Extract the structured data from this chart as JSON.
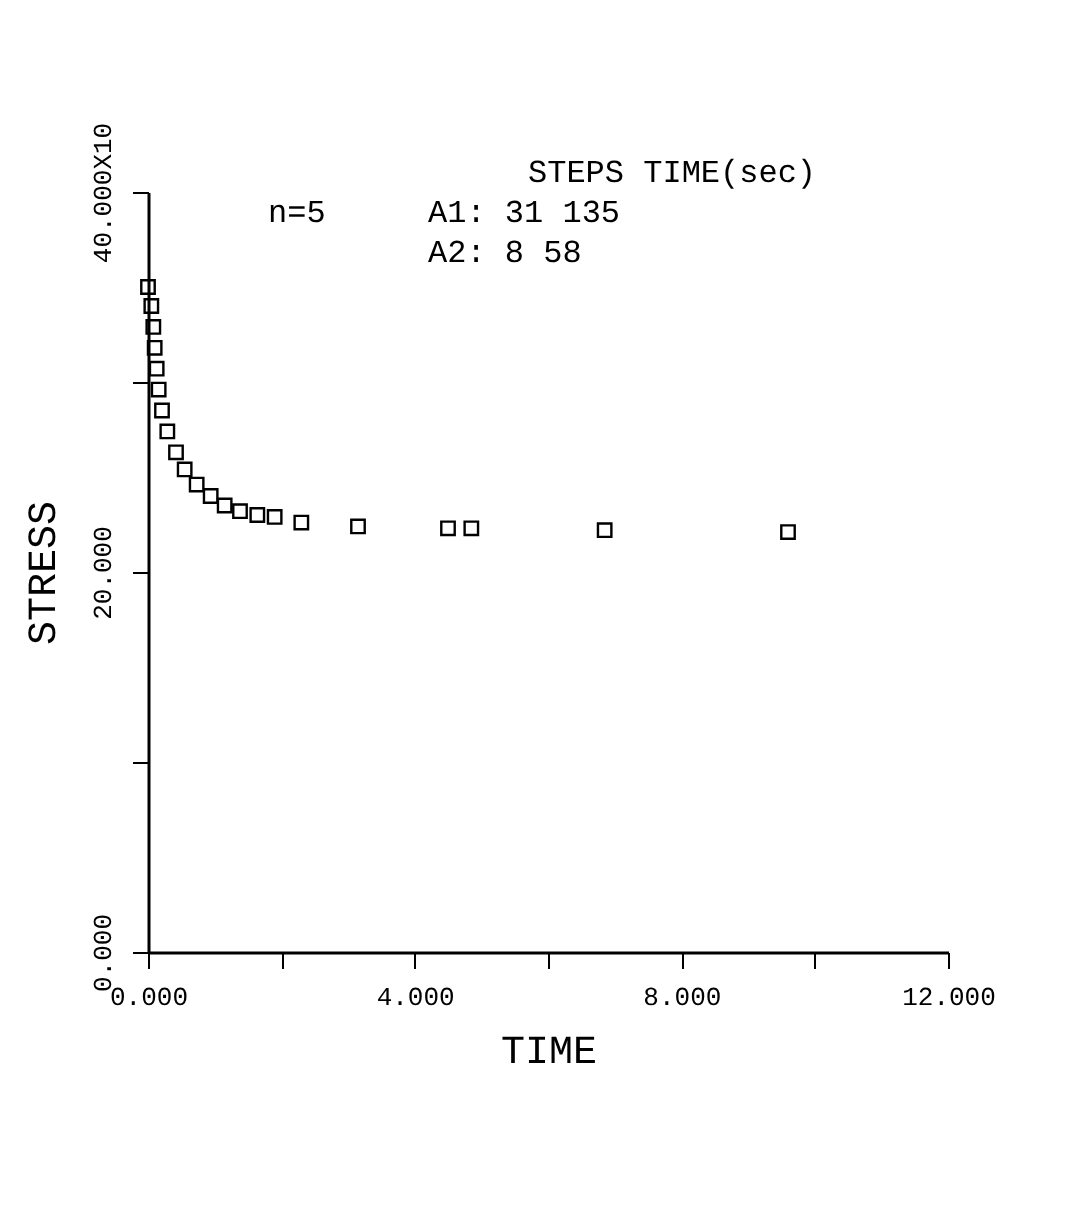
{
  "chart_data": {
    "type": "scatter",
    "xlabel": "TIME",
    "ylabel": "STRESS",
    "x": [
      0,
      0.05,
      0.08,
      0.1,
      0.13,
      0.16,
      0.21,
      0.29,
      0.42,
      0.55,
      0.73,
      0.94,
      1.15,
      1.38,
      1.64,
      1.9,
      2.3,
      3.15,
      4.5,
      4.85,
      6.85,
      9.6
    ],
    "series": [
      {
        "color": "#000000",
        "values": [
          35,
          34,
          32.9,
          31.8,
          30.7,
          29.6,
          28.5,
          27.4,
          26.3,
          25.4,
          24.6,
          24,
          23.5,
          23.2,
          23,
          22.9,
          22.6,
          22.4,
          22.3,
          22.3,
          22.2,
          22.1
        ]
      }
    ],
    "marker": "square",
    "grid": false,
    "xlim": [
      0,
      12
    ],
    "xticks": [
      {
        "value": 0,
        "label": "0.000"
      },
      {
        "value": 2,
        "label": null
      },
      {
        "value": 4,
        "label": "4.000"
      },
      {
        "value": 6,
        "label": null
      },
      {
        "value": 8,
        "label": "8.000"
      },
      {
        "value": 10,
        "label": null
      },
      {
        "value": 12,
        "label": "12.000"
      }
    ],
    "ylim": [
      0,
      40
    ],
    "yticks": [
      {
        "value": 0,
        "label": "0.000"
      },
      {
        "value": 10,
        "label": null
      },
      {
        "value": 20,
        "label": "20.000"
      },
      {
        "value": 30,
        "label": null
      },
      {
        "value": 40,
        "label": "40.000X10"
      }
    ],
    "annotations": [
      "STEPS TIME(sec)",
      "n=5",
      "A1:  31  135",
      "A2:  8  58"
    ]
  }
}
